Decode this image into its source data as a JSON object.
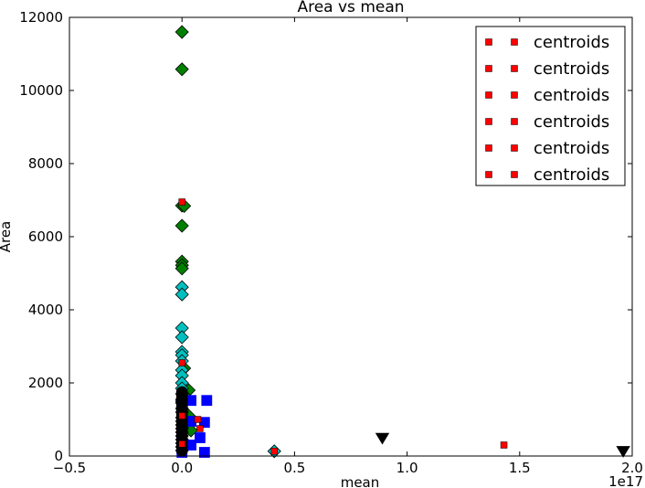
{
  "chart_data": {
    "type": "scatter",
    "title": "Area vs mean",
    "xlabel": "mean",
    "ylabel": "Area",
    "x_offset_label": "1e17",
    "xlim": [
      -0.5,
      2.0
    ],
    "ylim": [
      0,
      12000
    ],
    "xticks": [
      -0.5,
      0.0,
      0.5,
      1.0,
      1.5,
      2.0
    ],
    "xtick_labels": [
      "−0.5",
      "0.0",
      "0.5",
      "1.0",
      "1.5",
      "2.0"
    ],
    "yticks": [
      0,
      2000,
      4000,
      6000,
      8000,
      10000,
      12000
    ],
    "ytick_labels": [
      "0",
      "2000",
      "4000",
      "6000",
      "8000",
      "10000",
      "12000"
    ],
    "grid": false,
    "legend": {
      "placement": "top-right",
      "entries": [
        "centroids",
        "centroids",
        "centroids",
        "centroids",
        "centroids",
        "centroids"
      ]
    },
    "series": [
      {
        "marker": "diamond",
        "color": "#008000",
        "points": [
          [
            0.0,
            11600
          ],
          [
            0.0,
            10580
          ],
          [
            0.0,
            6850
          ],
          [
            0.01,
            6840
          ],
          [
            0.0,
            6300
          ],
          [
            0.0,
            5320
          ],
          [
            0.0,
            5220
          ],
          [
            0.0,
            5130
          ],
          [
            0.03,
            1800
          ],
          [
            0.01,
            2400
          ],
          [
            0.02,
            1600
          ],
          [
            0.0,
            1500
          ],
          [
            0.03,
            1100
          ],
          [
            0.02,
            900
          ],
          [
            0.04,
            700
          ]
        ]
      },
      {
        "marker": "diamond",
        "color": "#00bfbf",
        "points": [
          [
            0.0,
            4620
          ],
          [
            0.0,
            4420
          ],
          [
            0.0,
            3500
          ],
          [
            0.0,
            3250
          ],
          [
            0.0,
            2850
          ],
          [
            0.0,
            2760
          ],
          [
            0.0,
            2600
          ],
          [
            0.0,
            2350
          ],
          [
            0.0,
            2200
          ],
          [
            0.0,
            2000
          ],
          [
            0.0,
            1850
          ],
          [
            0.0,
            1700
          ],
          [
            0.0,
            1550
          ],
          [
            0.0,
            1450
          ],
          [
            0.0,
            1300
          ],
          [
            0.0,
            1200
          ],
          [
            0.0,
            1050
          ],
          [
            0.0,
            950
          ],
          [
            0.0,
            850
          ],
          [
            0.0,
            750
          ],
          [
            0.0,
            650
          ],
          [
            0.0,
            550
          ],
          [
            0.0,
            450
          ],
          [
            0.0,
            350
          ],
          [
            0.0,
            250
          ],
          [
            0.0,
            150
          ],
          [
            0.41,
            130
          ]
        ]
      },
      {
        "marker": "square",
        "color": "#0000ff",
        "points": [
          [
            0.11,
            1520
          ],
          [
            0.04,
            1520
          ],
          [
            0.0,
            1300
          ],
          [
            0.0,
            1050
          ],
          [
            0.04,
            950
          ],
          [
            0.1,
            920
          ],
          [
            0.0,
            800
          ],
          [
            0.0,
            600
          ],
          [
            0.08,
            500
          ],
          [
            0.0,
            400
          ],
          [
            0.04,
            300
          ],
          [
            0.0,
            200
          ],
          [
            0.1,
            100
          ],
          [
            0.0,
            100
          ]
        ]
      },
      {
        "marker": "circle",
        "color": "#000000",
        "points": [
          [
            0.0,
            1750
          ],
          [
            0.0,
            1650
          ],
          [
            0.0,
            1550
          ],
          [
            0.0,
            1450
          ],
          [
            0.0,
            1350
          ],
          [
            0.0,
            1250
          ],
          [
            0.0,
            1150
          ],
          [
            0.0,
            1050
          ],
          [
            0.0,
            950
          ],
          [
            0.0,
            850
          ],
          [
            0.0,
            750
          ],
          [
            0.0,
            650
          ],
          [
            0.0,
            550
          ],
          [
            0.0,
            450
          ],
          [
            0.0,
            350
          ],
          [
            0.0,
            250
          ],
          [
            0.0,
            150
          ]
        ]
      },
      {
        "marker": "triangle-down",
        "color": "#000000",
        "points": [
          [
            0.89,
            490
          ],
          [
            1.96,
            130
          ]
        ]
      },
      {
        "marker": "square-small",
        "color": "#ff0000",
        "name": "centroids",
        "points": [
          [
            0.0,
            6950
          ],
          [
            0.0,
            2550
          ],
          [
            0.0,
            1100
          ],
          [
            0.07,
            1000
          ],
          [
            0.08,
            750
          ],
          [
            0.0,
            330
          ],
          [
            0.41,
            130
          ],
          [
            1.43,
            300
          ]
        ]
      }
    ]
  }
}
